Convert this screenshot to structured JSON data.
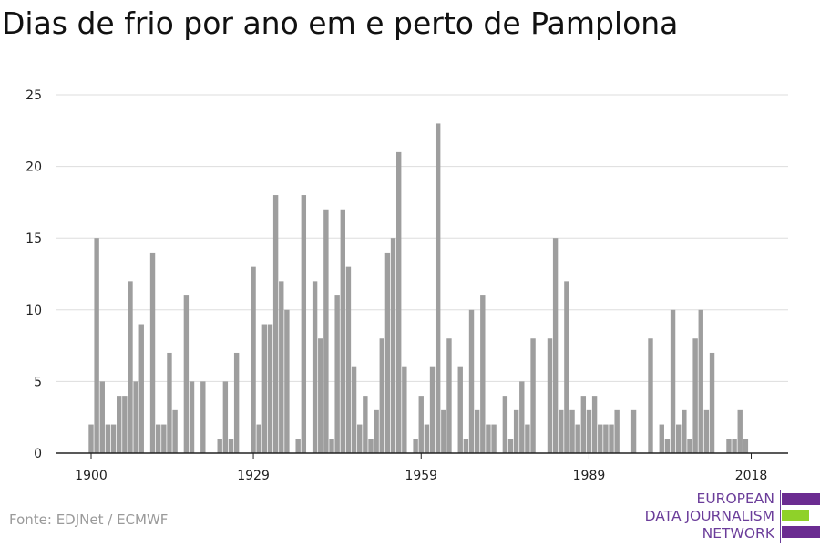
{
  "title": "Dias de frio por ano em e perto de Pamplona",
  "source": "Fonte: EDJNet / ECMWF",
  "logo": {
    "lines": [
      "EUROPEAN",
      "DATA JOURNALISM",
      "NETWORK"
    ],
    "colors": {
      "purple": "#6b2c91",
      "green": "#8fd129",
      "text": "#6b3d9a"
    }
  },
  "colors": {
    "bar": "#9e9e9e",
    "grid": "#dddddd",
    "axis": "#222222"
  },
  "chart_data": {
    "type": "bar",
    "title": "Dias de frio por ano em e perto de Pamplona",
    "xlabel": "",
    "ylabel": "",
    "grid": true,
    "x_ticks": [
      1900,
      1929,
      1959,
      1989,
      2018
    ],
    "y_ticks": [
      0,
      5,
      10,
      15,
      20,
      25
    ],
    "ylim": [
      0,
      25
    ],
    "xlim": [
      1900,
      2018
    ],
    "x": [
      1900,
      1901,
      1902,
      1903,
      1904,
      1905,
      1906,
      1907,
      1908,
      1909,
      1910,
      1911,
      1912,
      1913,
      1914,
      1915,
      1916,
      1917,
      1918,
      1919,
      1920,
      1921,
      1922,
      1923,
      1924,
      1925,
      1926,
      1927,
      1928,
      1929,
      1930,
      1931,
      1932,
      1933,
      1934,
      1935,
      1936,
      1937,
      1938,
      1939,
      1940,
      1941,
      1942,
      1943,
      1944,
      1945,
      1946,
      1947,
      1948,
      1949,
      1950,
      1951,
      1952,
      1953,
      1954,
      1955,
      1956,
      1957,
      1958,
      1959,
      1960,
      1961,
      1962,
      1963,
      1964,
      1965,
      1966,
      1967,
      1968,
      1969,
      1970,
      1971,
      1972,
      1973,
      1974,
      1975,
      1976,
      1977,
      1978,
      1979,
      1980,
      1981,
      1982,
      1983,
      1984,
      1985,
      1986,
      1987,
      1988,
      1989,
      1990,
      1991,
      1992,
      1993,
      1994,
      1995,
      1996,
      1997,
      1998,
      1999,
      2000,
      2001,
      2002,
      2003,
      2004,
      2005,
      2006,
      2007,
      2008,
      2009,
      2010,
      2011,
      2012,
      2013,
      2014,
      2015,
      2016,
      2017,
      2018
    ],
    "values": [
      2,
      15,
      5,
      2,
      2,
      4,
      4,
      12,
      5,
      9,
      0,
      14,
      2,
      2,
      7,
      3,
      0,
      11,
      5,
      0,
      5,
      0,
      0,
      1,
      5,
      1,
      7,
      0,
      0,
      13,
      2,
      9,
      9,
      18,
      12,
      10,
      0,
      1,
      18,
      0,
      12,
      8,
      17,
      1,
      11,
      17,
      13,
      6,
      2,
      4,
      1,
      3,
      8,
      14,
      15,
      21,
      6,
      0,
      1,
      4,
      2,
      6,
      23,
      3,
      8,
      0,
      6,
      1,
      10,
      3,
      11,
      2,
      2,
      0,
      4,
      1,
      3,
      5,
      2,
      8,
      0,
      0,
      8,
      15,
      3,
      12,
      3,
      2,
      4,
      3,
      4,
      2,
      2,
      2,
      3,
      0,
      0,
      3,
      0,
      0,
      8,
      0,
      2,
      1,
      10,
      2,
      3,
      1,
      8,
      10,
      3,
      7,
      0,
      0,
      1,
      1,
      3,
      1,
      0
    ]
  }
}
